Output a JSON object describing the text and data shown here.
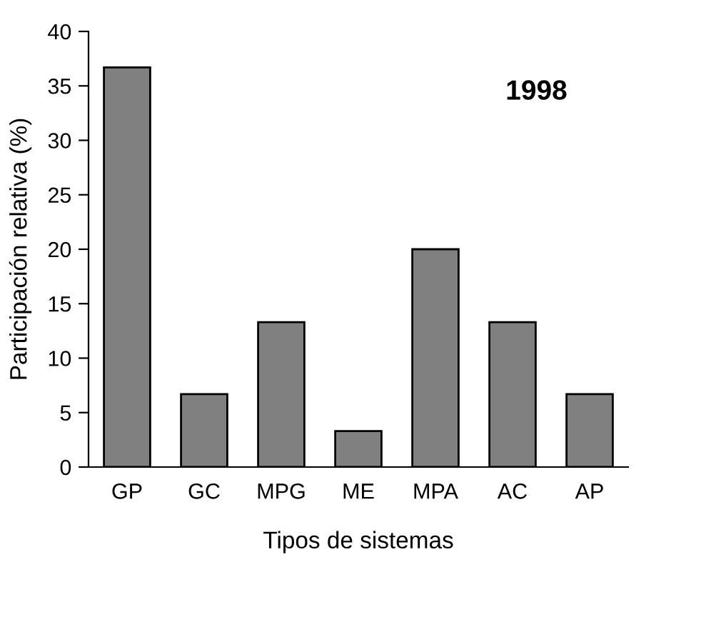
{
  "chart_data": {
    "type": "bar",
    "xlabel": "Tipos de sistemas",
    "ylabel": "Participación relativa (%)",
    "annotations": [
      "1998"
    ],
    "categories": [
      "GP",
      "GC",
      "MPG",
      "ME",
      "MPA",
      "AC",
      "AP"
    ],
    "values": [
      36.7,
      6.7,
      13.3,
      3.3,
      20.0,
      13.3,
      6.7
    ],
    "color": "#808080",
    "ylim": [
      0,
      40
    ],
    "yticks": [
      0,
      5,
      10,
      15,
      20,
      25,
      30,
      35,
      40
    ],
    "grid": false,
    "legend": false
  }
}
